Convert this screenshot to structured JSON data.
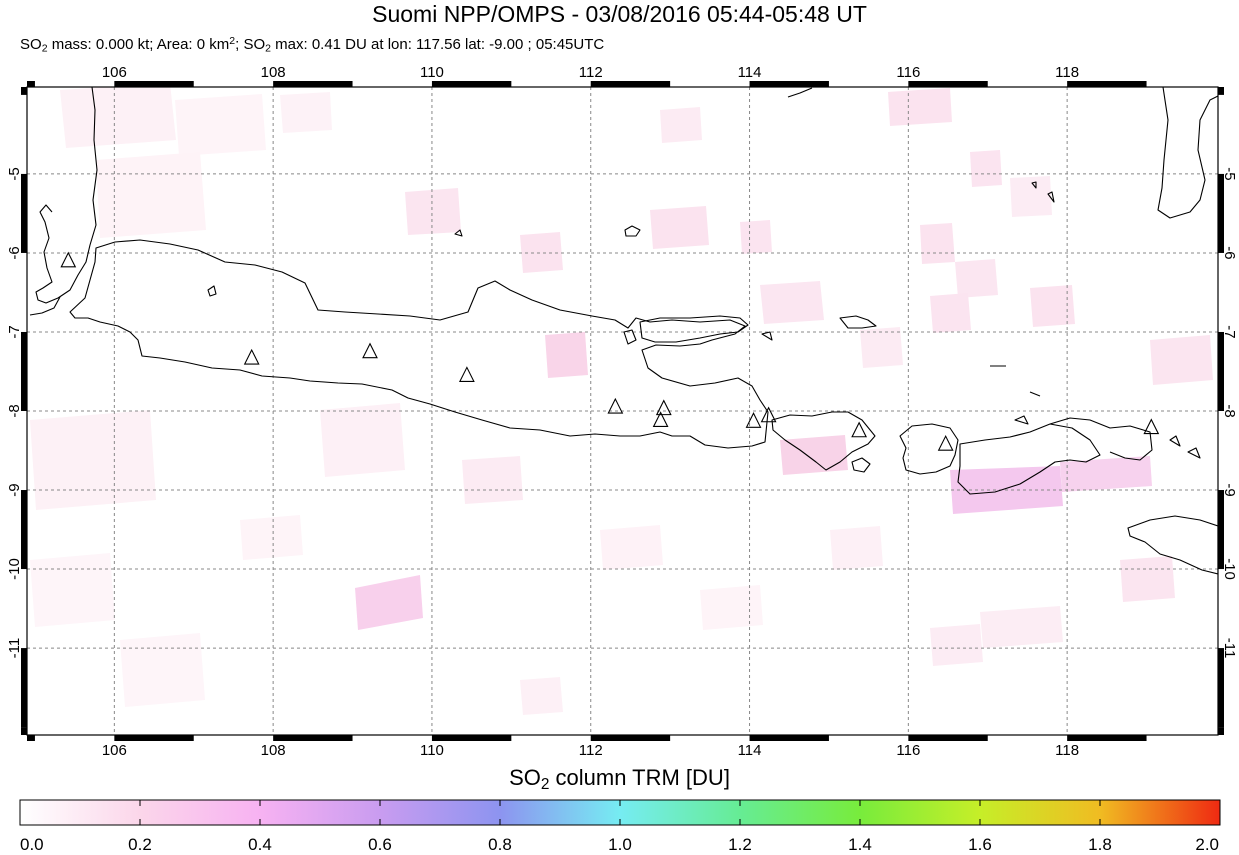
{
  "title": "Suomi NPP/OMPS - 03/08/2016 05:44-05:48 UT",
  "subtitle": {
    "mass_prefix": "SO",
    "mass_sub": "2",
    "mass_text": " mass: 0.000 kt; Area: 0 km",
    "area_sup": "2",
    "max_prefix": "; SO",
    "max_sub": "2",
    "max_text": " max: 0.41 DU at lon: 117.56 lat: -9.00 ; 05:45UTC"
  },
  "map": {
    "lon_range": [
      104.9,
      119.9
    ],
    "lat_range": [
      -12.1,
      -3.9
    ],
    "lon_ticks": [
      "106",
      "108",
      "110",
      "112",
      "114",
      "116",
      "118"
    ],
    "lat_ticks": [
      "-5",
      "-6",
      "-7",
      "-8",
      "-9",
      "-10",
      "-11"
    ],
    "volcano_marker": "triangle-icon",
    "volcanoes": [
      {
        "lon": 105.42,
        "lat": -6.1
      },
      {
        "lon": 107.73,
        "lat": -7.33
      },
      {
        "lon": 109.22,
        "lat": -7.25
      },
      {
        "lon": 110.44,
        "lat": -7.55
      },
      {
        "lon": 112.31,
        "lat": -7.95
      },
      {
        "lon": 112.92,
        "lat": -7.97
      },
      {
        "lon": 112.88,
        "lat": -8.12
      },
      {
        "lon": 114.05,
        "lat": -8.13
      },
      {
        "lon": 114.24,
        "lat": -8.06
      },
      {
        "lon": 115.38,
        "lat": -8.25
      },
      {
        "lon": 116.47,
        "lat": -8.42
      },
      {
        "lon": 119.06,
        "lat": -8.21
      }
    ]
  },
  "colorbar": {
    "title_prefix": "SO",
    "title_sub": "2",
    "title_suffix": " column TRM [DU]",
    "ticks": [
      "0.0",
      "0.2",
      "0.4",
      "0.6",
      "0.8",
      "1.0",
      "1.2",
      "1.4",
      "1.6",
      "1.8",
      "2.0"
    ],
    "min": 0.0,
    "max": 2.0,
    "colors": [
      "#ffffff",
      "#fbd6ea",
      "#f7b2f2",
      "#c99cf0",
      "#8d94f0",
      "#76ecf2",
      "#66ec94",
      "#78ec3c",
      "#c6ee28",
      "#f0bc22",
      "#ef2a12"
    ]
  }
}
